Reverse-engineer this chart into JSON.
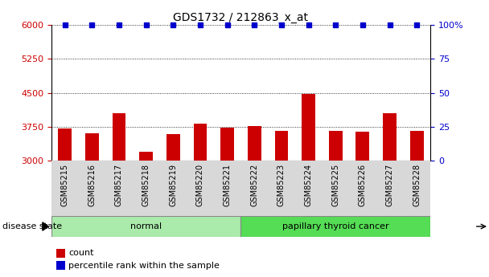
{
  "title": "GDS1732 / 212863_x_at",
  "samples": [
    "GSM85215",
    "GSM85216",
    "GSM85217",
    "GSM85218",
    "GSM85219",
    "GSM85220",
    "GSM85221",
    "GSM85222",
    "GSM85223",
    "GSM85224",
    "GSM85225",
    "GSM85226",
    "GSM85227",
    "GSM85228"
  ],
  "counts": [
    3720,
    3610,
    4050,
    3200,
    3580,
    3820,
    3730,
    3760,
    3650,
    4480,
    3650,
    3640,
    4050,
    3660
  ],
  "percentile_ranks": [
    100,
    100,
    100,
    100,
    100,
    100,
    100,
    100,
    100,
    100,
    100,
    100,
    100,
    100
  ],
  "bar_color": "#cc0000",
  "dot_color": "#0000cc",
  "ylim_left": [
    3000,
    6000
  ],
  "ylim_right": [
    0,
    100
  ],
  "yticks_left": [
    3000,
    3750,
    4500,
    5250,
    6000
  ],
  "yticks_right": [
    0,
    25,
    50,
    75,
    100
  ],
  "ytick_right_labels": [
    "0",
    "25",
    "50",
    "75",
    "100%"
  ],
  "groups": [
    {
      "label": "normal",
      "indices": [
        0,
        1,
        2,
        3,
        4,
        5,
        6
      ],
      "color": "#99ee99"
    },
    {
      "label": "papillary thyroid cancer",
      "indices": [
        7,
        8,
        9,
        10,
        11,
        12,
        13
      ],
      "color": "#55cc55"
    }
  ],
  "disease_state_label": "disease state",
  "legend_count_label": "count",
  "legend_percentile_label": "percentile rank within the sample",
  "background_color": "#ffffff",
  "title_color": "#000000",
  "left_axis_color": "#cc0000",
  "right_axis_color": "#0000cc",
  "xticklabel_bg_color": "#d8d8d8",
  "normal_group_color": "#aaeaaa",
  "cancer_group_color": "#55dd55"
}
